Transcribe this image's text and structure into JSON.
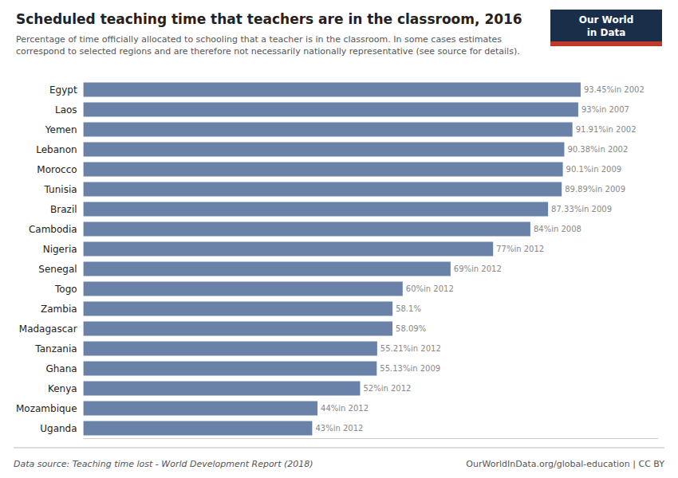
{
  "chart_data": {
    "type": "bar",
    "orientation": "horizontal",
    "title": "Scheduled teaching time that teachers are in the classroom, 2016",
    "subtitle": "Percentage of time officially allocated to schooling that a teacher is in the classroom. In some cases estimates\ncorrespond to selected regions and are therefore not necessarily nationally representative (see source for details).",
    "categories": [
      "Egypt",
      "Laos",
      "Yemen",
      "Lebanon",
      "Morocco",
      "Tunisia",
      "Brazil",
      "Cambodia",
      "Nigeria",
      "Senegal",
      "Togo",
      "Zambia",
      "Madagascar",
      "Tanzania",
      "Ghana",
      "Kenya",
      "Mozambique",
      "Uganda"
    ],
    "values": [
      93.45,
      93,
      91.91,
      90.38,
      90.1,
      89.89,
      87.33,
      84,
      77,
      69,
      60,
      58.1,
      58.09,
      55.21,
      55.13,
      52,
      44,
      43
    ],
    "value_labels": [
      "93.45%in 2002",
      "93%in 2007",
      "91.91%in 2002",
      "90.38%in 2002",
      "90.1%in 2009",
      "89.89%in 2009",
      "87.33%in 2009",
      "84%in 2008",
      "77%in 2012",
      "69%in 2012",
      "60%in 2012",
      "58.1%",
      "58.09%",
      "55.21%in 2012",
      "55.13%in 2009",
      "52%in 2012",
      "44%in 2012",
      "43%in 2012"
    ],
    "data_labels": true,
    "color": "#6b82a8",
    "xlim": [
      0,
      108
    ],
    "tick_labels": "y",
    "grid": false,
    "annotations": [
      "Data source: Teaching time lost - World Development Report (2018)",
      "OurWorldInData.org/global-education | CC BY",
      "Our World",
      "in Data"
    ]
  }
}
